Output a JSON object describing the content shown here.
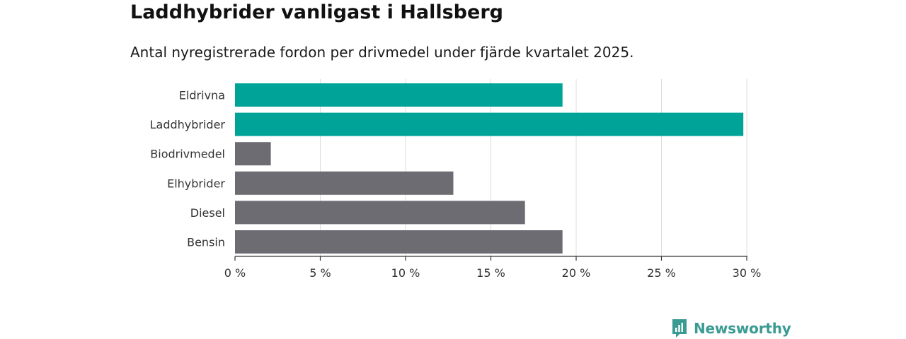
{
  "header": {
    "title": "Laddhybrider vanligast i Hallsberg",
    "subtitle": "Antal nyregistrerade fordon per drivmedel under fjärde kvartalet 2025."
  },
  "chart_data": {
    "type": "bar",
    "orientation": "horizontal",
    "categories": [
      "Eldrivna",
      "Laddhybrider",
      "Biodrivmedel",
      "Elhybrider",
      "Diesel",
      "Bensin"
    ],
    "values": [
      19.2,
      29.8,
      2.1,
      12.8,
      17.0,
      19.2
    ],
    "colors": [
      "#00a398",
      "#00a398",
      "#6d6c73",
      "#6d6c73",
      "#6d6c73",
      "#6d6c73"
    ],
    "xlim": [
      0,
      30
    ],
    "xticks": [
      0,
      5,
      10,
      15,
      20,
      25,
      30
    ],
    "xtick_labels": [
      "0 %",
      "5 %",
      "10 %",
      "15 %",
      "20 %",
      "25 %",
      "30 %"
    ],
    "grid": true,
    "title": "Laddhybrider vanligast i Hallsberg",
    "xlabel": "",
    "ylabel": ""
  },
  "footer": {
    "brand": "Newsworthy",
    "brand_color": "#3a9b92",
    "logo_icon": "bar-chart-icon"
  }
}
